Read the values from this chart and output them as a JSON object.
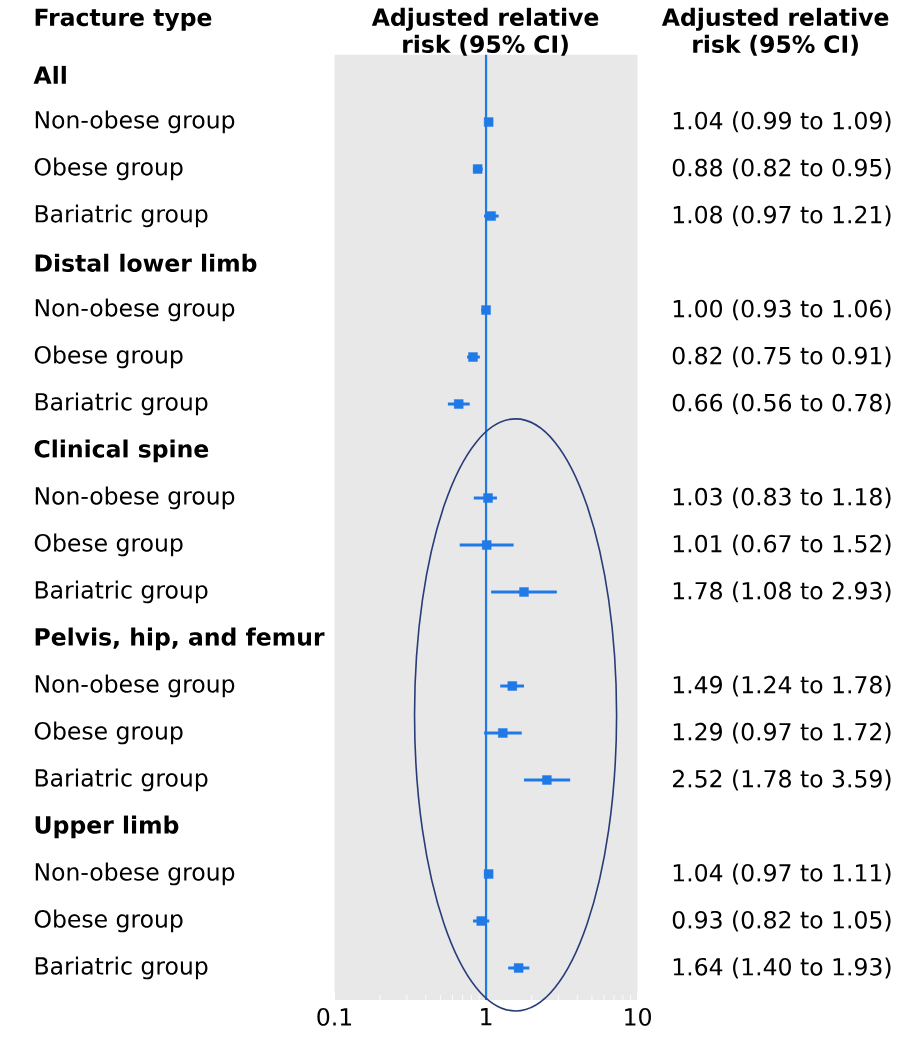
{
  "chart_data": {
    "type": "scatter",
    "orientation": "horizontal",
    "log": "x",
    "marker": "square",
    "color": "#1f7ae8",
    "ylabel": "Fracture type",
    "xlabel": "Adjusted relative risk (95% CI)",
    "annotations": [
      "Adjusted relative risk (95% CI)"
    ],
    "categories": [
      "All",
      "Non-obese group",
      "Obese group",
      "Bariatric group",
      "Distal lower limb",
      "Non-obese group",
      "Obese group",
      "Bariatric group",
      "Clinical spine",
      "Non-obese group",
      "Obese group",
      "Bariatric group",
      "Pelvis, hip, and femur",
      "Non-obese group",
      "Obese group",
      "Bariatric group",
      "Upper limb",
      "Non-obese group",
      "Obese group",
      "Bariatric group"
    ],
    "values": [
      null,
      1.04,
      0.88,
      1.08,
      null,
      1.0,
      0.82,
      0.66,
      null,
      1.03,
      1.01,
      1.78,
      null,
      1.49,
      1.29,
      2.52,
      null,
      1.04,
      0.93,
      1.64
    ],
    "errors": [
      null,
      [
        0.99,
        1.09
      ],
      [
        0.82,
        0.95
      ],
      [
        0.97,
        1.21
      ],
      null,
      [
        0.93,
        1.06
      ],
      [
        0.75,
        0.91
      ],
      [
        0.56,
        0.78
      ],
      null,
      [
        0.83,
        1.18
      ],
      [
        0.67,
        1.52
      ],
      [
        1.08,
        2.93
      ],
      null,
      [
        1.24,
        1.78
      ],
      [
        0.97,
        1.72
      ],
      [
        1.78,
        3.59
      ],
      null,
      [
        0.97,
        1.11
      ],
      [
        0.82,
        1.05
      ],
      [
        1.4,
        1.93
      ]
    ],
    "value_labels": [
      null,
      "1.04 (0.99 to 1.09)",
      "0.88 (0.82 to 0.95)",
      "1.08 (0.97 to 1.21)",
      null,
      "1.00 (0.93 to 1.06)",
      "0.82 (0.75 to 0.91)",
      "0.66 (0.56 to 0.78)",
      null,
      "1.03 (0.83 to 1.18)",
      "1.01 (0.67 to 1.52)",
      "1.78 (1.08 to 2.93)",
      null,
      "1.49 (1.24 to 1.78)",
      "1.29 (0.97 to 1.72)",
      "2.52 (1.78 to 3.59)",
      null,
      "1.04 (0.97 to 1.11)",
      "0.93 (0.82 to 1.05)",
      "1.64 (1.40 to 1.93)"
    ],
    "xlim": [
      0.1,
      10
    ],
    "xticks": [
      0.1,
      1,
      10
    ],
    "ref_lines": [
      {
        "axis": "x",
        "value": 1,
        "color": "#1f7ae8",
        "line_style": "solid"
      }
    ]
  }
}
